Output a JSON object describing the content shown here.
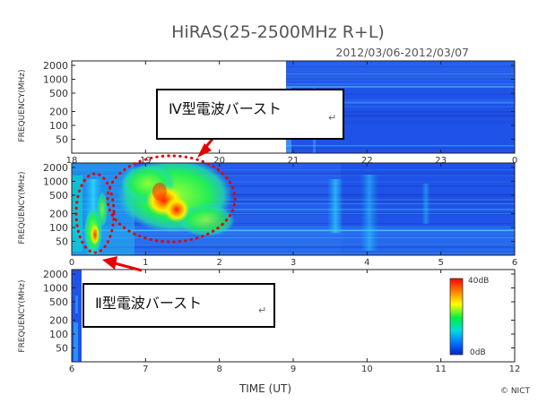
{
  "chart_data": {
    "type": "heatmap",
    "title": "HiRAS(25-2500MHz R+L)",
    "subtitle": "2012/03/06-2012/03/07",
    "xlabel": "TIME (UT)",
    "ylabel": "FREQUENCY(MHz)",
    "y_scale": "log",
    "y_ticks": [
      "2000",
      "1000",
      "500",
      "200",
      "100",
      "50"
    ],
    "y_tick_values": [
      2000,
      1000,
      500,
      200,
      100,
      50
    ],
    "ylim": [
      25,
      2500
    ],
    "panels": [
      {
        "x_ticks": [
          "18",
          "19",
          "20",
          "21",
          "22",
          "23",
          "0"
        ],
        "xlim_hours": [
          18,
          24
        ],
        "data_start_hour": 20.98
      },
      {
        "x_ticks": [
          "0",
          "1",
          "2",
          "3",
          "4",
          "5",
          "6"
        ],
        "xlim_hours": [
          0,
          6
        ]
      },
      {
        "x_ticks": [
          "6",
          "7",
          "8",
          "9",
          "10",
          "11",
          "12"
        ],
        "xlim_hours": [
          6,
          12
        ],
        "data_end_hour": 6.18
      }
    ],
    "colorbar": {
      "max_label": "40dB",
      "min_label": "0dB",
      "range_db": [
        0,
        40
      ]
    },
    "annotations": [
      {
        "text": "Ⅳ型電波バースト",
        "time_range_ut": [
          18.6,
          20.1
        ],
        "freq_range_mhz": [
          40,
          2500
        ]
      },
      {
        "text": "Ⅱ型電波バースト",
        "time_range_ut": [
          0.25,
          0.6
        ],
        "freq_range_mhz": [
          40,
          2500
        ]
      }
    ],
    "credit": "© NICT"
  },
  "colors": {
    "background_low": "#1f52e8",
    "annotation_red": "#e60000",
    "colorbar": [
      "#ff0000",
      "#ff8800",
      "#ffff00",
      "#00ee44",
      "#00dddd",
      "#0077ff",
      "#0022cc"
    ]
  }
}
